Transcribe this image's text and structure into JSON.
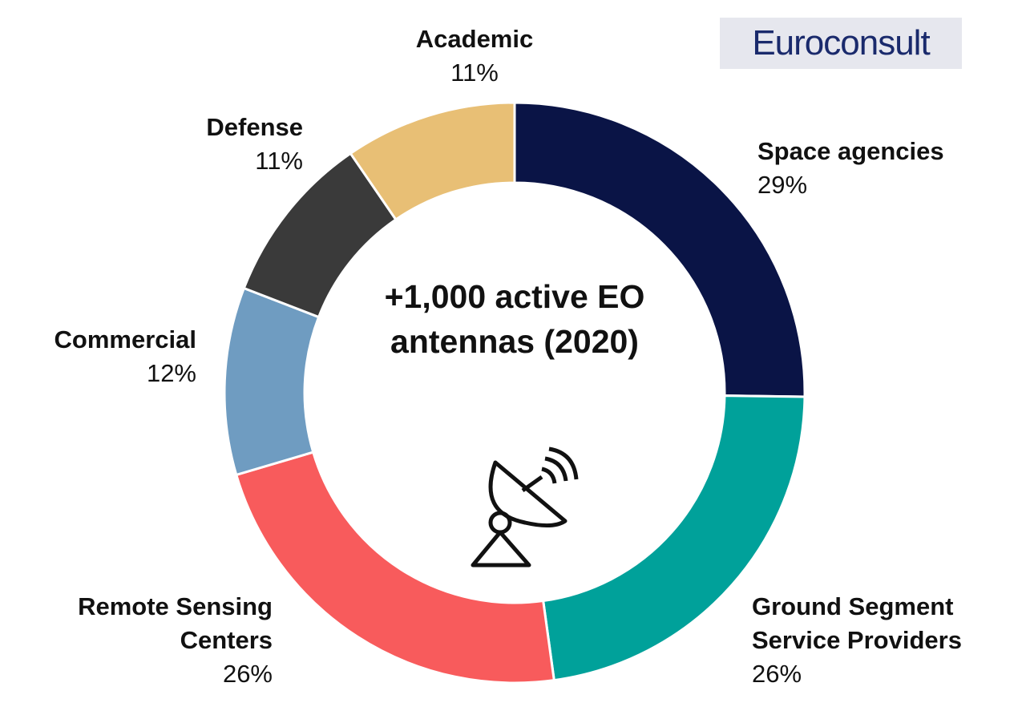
{
  "chart_data": {
    "type": "donut",
    "annotation": "+1,000 active EO antennas (2020)",
    "logo": "Euroconsult",
    "categories": [
      "Space agencies",
      "Ground Segment Service Providers",
      "Remote Sensing Centers",
      "Commercial",
      "Defense",
      "Academic"
    ],
    "values": [
      29,
      26,
      26,
      12,
      11,
      11
    ],
    "value_labels": [
      "29%",
      "26%",
      "26%",
      "12%",
      "11%",
      "11%"
    ],
    "colors": [
      "#0a1446",
      "#00a19a",
      "#f85b5c",
      "#6f9cc1",
      "#3a3a3a",
      "#e8bf75"
    ]
  }
}
